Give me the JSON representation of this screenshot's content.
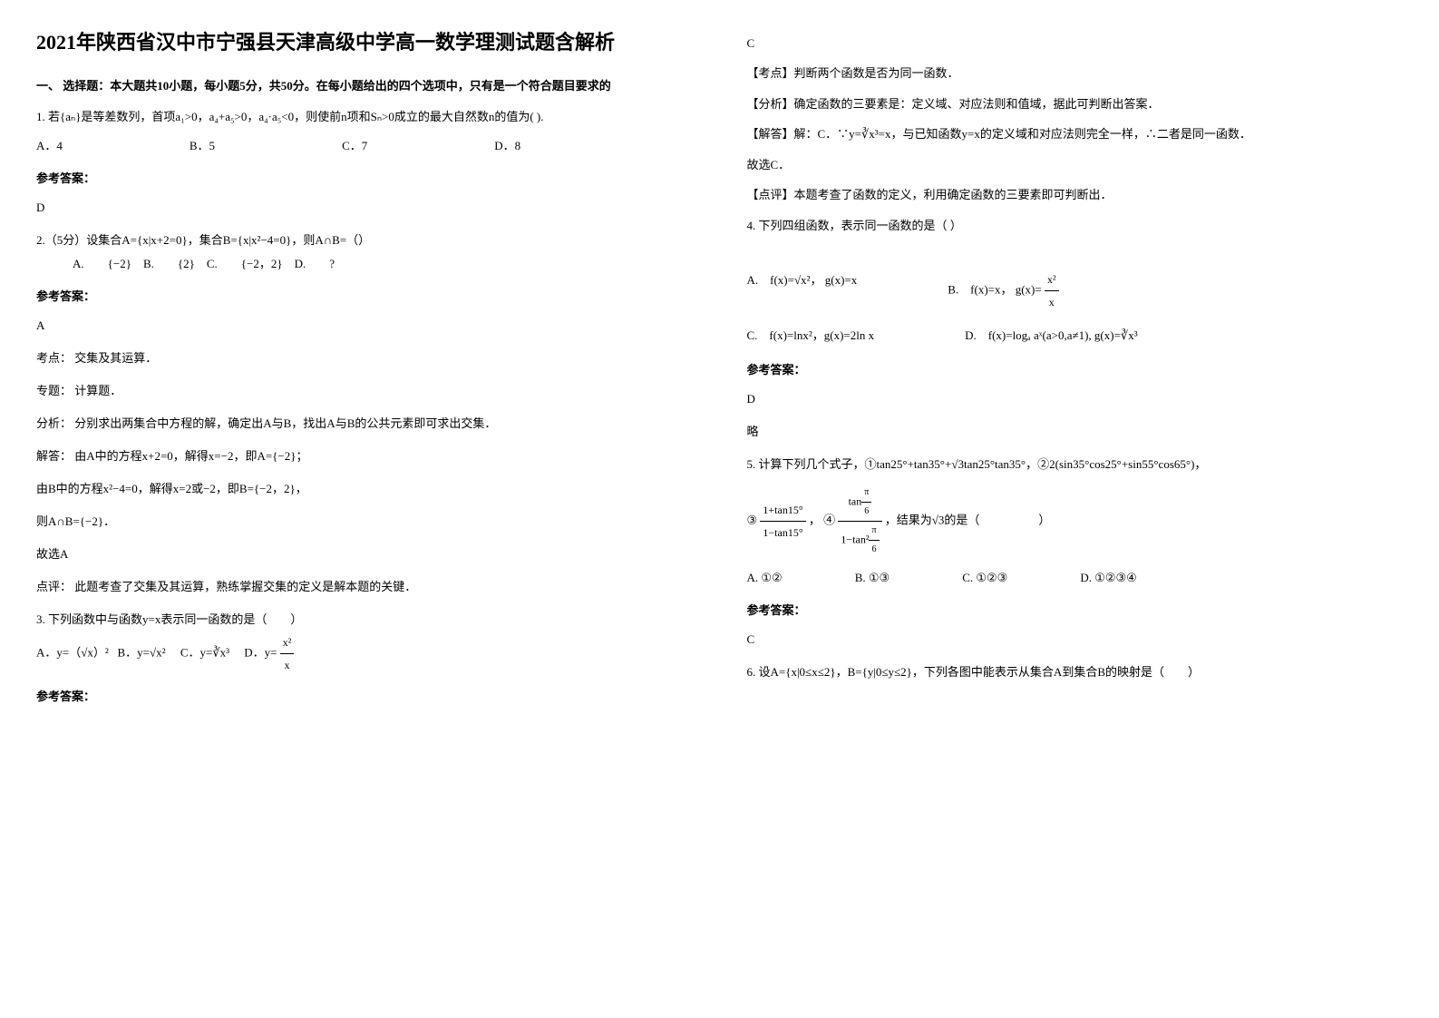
{
  "title": "2021年陕西省汉中市宁强县天津高级中学高一数学理测试题含解析",
  "section1": {
    "header": "一、 选择题：本大题共10小题，每小题5分，共50分。在每小题给出的四个选项中，只有是一个符合题目要求的"
  },
  "q1": {
    "text": "1. 若{aₙ}是等差数列，首项a₁>0，a₄+a₅>0，a₄·a₅<0，则使前n项和Sₙ>0成立的最大自然数n的值为(    ).",
    "optA": "A．4",
    "optB": "B．5",
    "optC": "C．7",
    "optD": "D．8",
    "answerLabel": "参考答案：",
    "answer": "D"
  },
  "q2": {
    "text": "2.（5分）设集合A={x|x+2=0}，集合B={x|x²−4=0}，则A∩B=（）",
    "optA": "A.　　{−2}",
    "optB": "B.　　{2}",
    "optC": "C.　　{−2，2}",
    "optD": "D.　　?",
    "answerLabel": "参考答案：",
    "answer": "A",
    "kaodian": "考点：  交集及其运算．",
    "zhuanti": "专题：  计算题．",
    "fenxi": "分析：  分别求出两集合中方程的解，确定出A与B，找出A与B的公共元素即可求出交集．",
    "jieda1": "解答：  由A中的方程x+2=0，解得x=−2，即A={−2}；",
    "jieda2": "由B中的方程x²−4=0，解得x=2或−2，即B={−2，2}，",
    "jieda3": "则A∩B={−2}．",
    "jieda4": "故选A",
    "dianping": "点评：  此题考查了交集及其运算，熟练掌握交集的定义是解本题的关键．"
  },
  "q3": {
    "text": "3. 下列函数中与函数y=x表示同一函数的是（　　）",
    "optA_pre": "A．y=（√x）²",
    "optB_pre": "B．y=√x²",
    "optC_pre": "C．y=∛x³",
    "optD_pre": "D．y=",
    "optD_frac_num": "x²",
    "optD_frac_den": "x",
    "answerLabel": "参考答案：",
    "answer": "C",
    "kaodian": "【考点】判断两个函数是否为同一函数．",
    "fenxi": "【分析】确定函数的三要素是：定义域、对应法则和值域，据此可判断出答案．",
    "jieda_pre": "【解答】解：C．∵y=∛x³=x，与已知函数y=x的定义域和对应法则完全一样，∴二者是同一函数．",
    "jieda2": "故选C．",
    "dianping": "【点评】本题考查了函数的定义，利用确定函数的三要素即可判断出．"
  },
  "q4": {
    "text": "4. 下列四组函数，表示同一函数的是（   ）",
    "optA": "A.　f(x)=√x²，  g(x)=x",
    "optB_pre": "B.　f(x)=x，  g(x)=",
    "optB_frac_num": "x²",
    "optB_frac_den": "x",
    "optC": "C.　f(x)=lnx²，g(x)=2ln x",
    "optD": "D.　f(x)=logₐ aˣ(a>0,a≠1), g(x)=∛x³",
    "answerLabel": "参考答案：",
    "answer": "D",
    "note": "略"
  },
  "q5": {
    "text_pre": "5. 计算下列几个式子，①tan25°+tan35°+√3tan25°tan35°，②2(sin35°cos25°+sin55°cos65°)，",
    "circ3_pre": "③",
    "circ3_num": "1+tan15°",
    "circ3_den": "1−tan15°",
    "circ4_pre": "， ④",
    "circ4_num_pre": "tan",
    "circ4_num_frac_num": "π",
    "circ4_num_frac_den": "6",
    "circ4_den_pre": "1−tan²",
    "circ4_den_frac_num": "π",
    "circ4_den_frac_den": "6",
    "text_post": "，结果为√3的是（　　　　　）",
    "optA": "A. ①②",
    "optB": "B. ①③",
    "optC": "C. ①②③",
    "optD": "D. ①②③④",
    "answerLabel": "参考答案：",
    "answer": "C"
  },
  "q6": {
    "text": "6. 设A={x|0≤x≤2}，B={y|0≤y≤2}，下列各图中能表示从集合A到集合B的映射是（　　）"
  }
}
